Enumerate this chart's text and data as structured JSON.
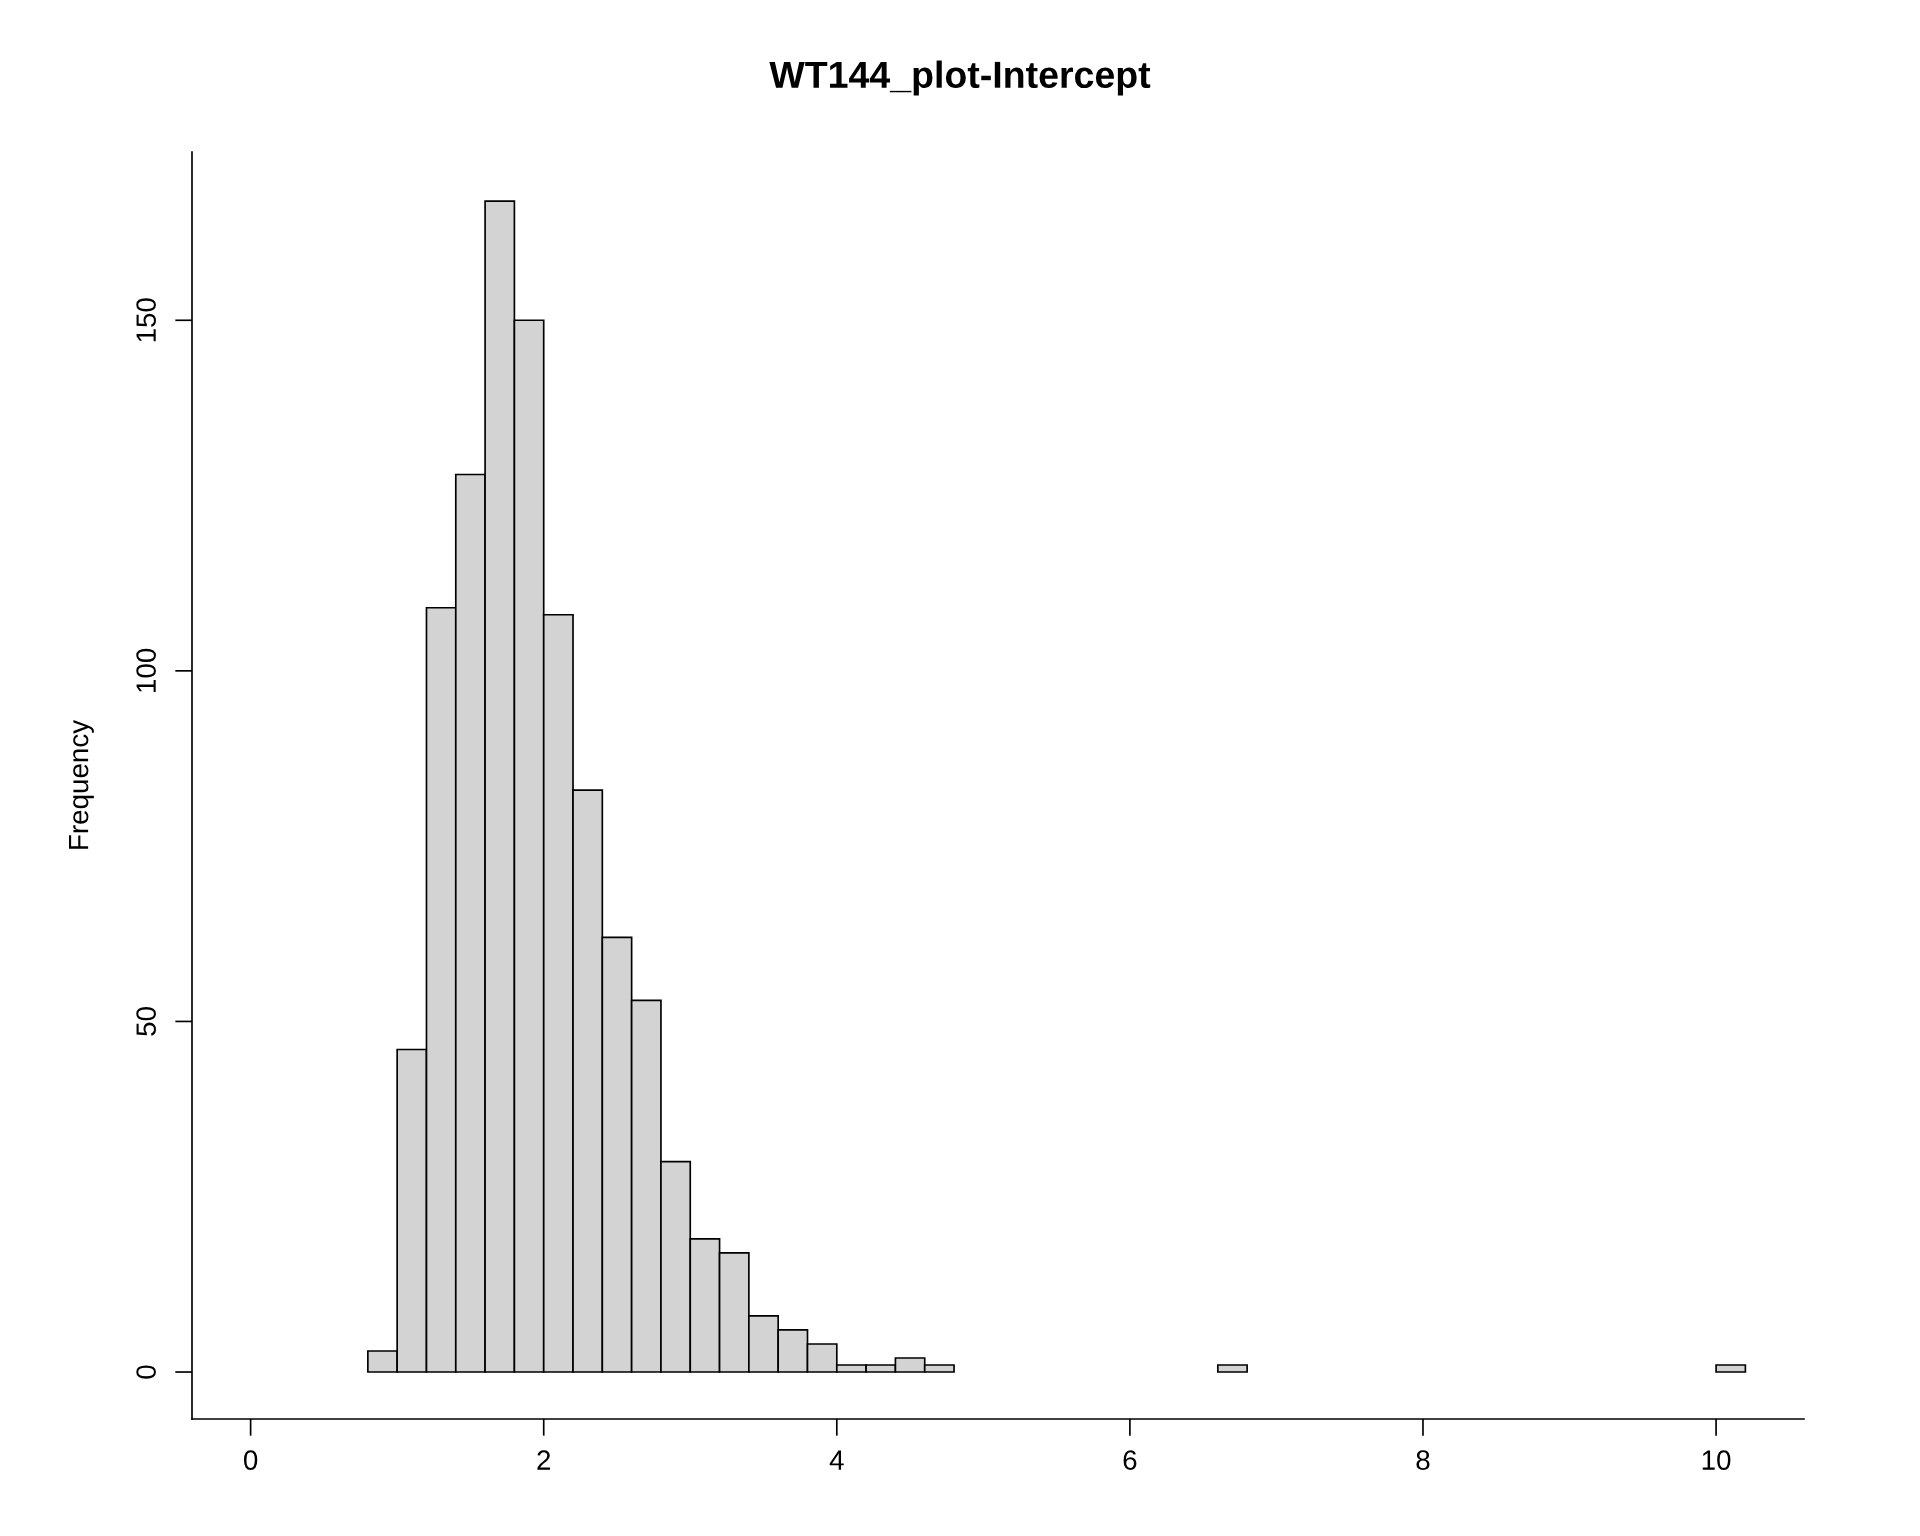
{
  "chart_data": {
    "type": "histogram",
    "title": "WT144_plot-Intercept",
    "ylabel": "Frequency",
    "bins": [
      0.8,
      1.0,
      1.2,
      1.4,
      1.6,
      1.8,
      2.0,
      2.2,
      2.4,
      2.6,
      2.8,
      3.0,
      3.2,
      3.4,
      3.6,
      3.8,
      4.0,
      4.2,
      4.4,
      4.6,
      4.8,
      5.0,
      5.2,
      5.4,
      5.6,
      5.8,
      6.0,
      6.2,
      6.4,
      6.6,
      6.8,
      7.0,
      7.2,
      7.4,
      7.6,
      7.8,
      8.0,
      8.2,
      8.4,
      8.6,
      8.8,
      9.0,
      9.2,
      9.4,
      9.6,
      9.8,
      10.0,
      10.2
    ],
    "values": [
      3,
      46,
      109,
      128,
      167,
      150,
      108,
      83,
      62,
      53,
      30,
      19,
      17,
      8,
      6,
      4,
      1,
      1,
      2,
      1,
      0,
      0,
      0,
      0,
      0,
      0,
      0,
      0,
      0,
      1,
      0,
      0,
      0,
      0,
      0,
      0,
      0,
      0,
      0,
      0,
      0,
      0,
      0,
      0,
      0,
      0,
      1
    ],
    "color": "#d3d3d3",
    "xlim": [
      -0.4,
      10.6
    ],
    "ylim": [
      -6.7,
      174
    ],
    "xticks": [
      0,
      2,
      4,
      6,
      8,
      10
    ],
    "yticks": [
      0,
      50,
      100,
      150
    ],
    "grid": false
  }
}
